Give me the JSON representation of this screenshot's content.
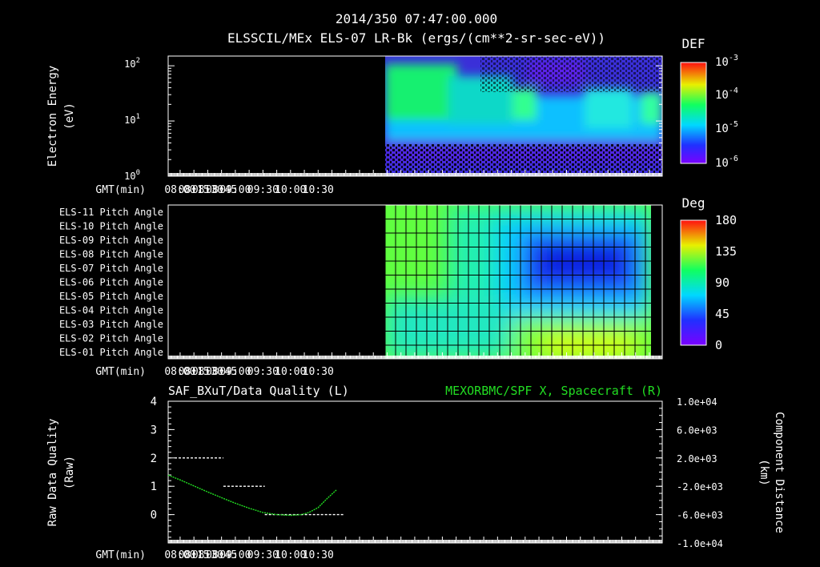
{
  "header": {
    "timestamp": "2014/350 07:47:00.000",
    "subtitle": "ELSSCIL/MEx ELS-07 LR-Bk  (ergs/(cm**2-sr-sec-eV))"
  },
  "time_axis": {
    "label": "GMT(min)",
    "range_minutes": [
      467,
      1004
    ],
    "ticks": [
      "08:00",
      "08:15",
      "08:30",
      "08:45",
      "09:00",
      "09:30",
      "10:00",
      "10:30"
    ],
    "tick_minutes": [
      480,
      495,
      510,
      525,
      540,
      570,
      600,
      630
    ]
  },
  "colors": {
    "background": "#000000",
    "axis": "#ffffff",
    "spacecraft_series": "#22dd22",
    "quality_series": "#ffffff"
  },
  "chart_data": [
    {
      "id": "energy_spectrogram",
      "type": "heatmap",
      "ylabel": "Electron Energy (eV)",
      "yscale": "log",
      "ylim": [
        1,
        150
      ],
      "ytick_labels": [
        "10^0",
        "10^1",
        "10^2"
      ],
      "xlabel": "GMT(min)",
      "data_start": "09:05",
      "colorbar": {
        "title": "DEF",
        "scale": "log",
        "range": [
          1e-06,
          0.001
        ],
        "tick_labels": [
          "10^-3",
          "10^-4",
          "10^-5",
          "10^-6"
        ]
      }
    },
    {
      "id": "pitch_angle",
      "type": "heatmap",
      "rows": [
        "ELS-11 Pitch Angle",
        "ELS-10 Pitch Angle",
        "ELS-09 Pitch Angle",
        "ELS-08 Pitch Angle",
        "ELS-07 Pitch Angle",
        "ELS-06 Pitch Angle",
        "ELS-05 Pitch Angle",
        "ELS-04 Pitch Angle",
        "ELS-03 Pitch Angle",
        "ELS-02 Pitch Angle",
        "ELS-01 Pitch Angle"
      ],
      "xlabel": "GMT(min)",
      "data_start": "09:05",
      "colorbar": {
        "title": "Deg",
        "range": [
          0,
          180
        ],
        "tick_labels": [
          "180",
          "135",
          "90",
          "45",
          "0"
        ]
      }
    },
    {
      "id": "quality_and_position",
      "type": "line",
      "left_title": "SAF_BXuT/Data Quality (L)",
      "right_title": "MEXORBMC/SPF X, Spacecraft (R)",
      "ylabel_left": "Raw Data Quality (Raw)",
      "ylabel_right": "Component Distance (km)",
      "ylim_left": [
        -1,
        4
      ],
      "yticks_left": [
        "4",
        "3",
        "2",
        "1",
        "0"
      ],
      "ylim_right": [
        -10000,
        10000
      ],
      "yticks_right": [
        "1.0e+04",
        "6.0e+03",
        "2.0e+03",
        "-2.0e+03",
        "-6.0e+03",
        "-1.0e+04"
      ],
      "series": [
        {
          "name": "SAF_BXuT/Data Quality",
          "axis": "left",
          "segments": [
            {
              "x": [
                474,
                527
              ],
              "y": 2
            },
            {
              "x": [
                527,
                572
              ],
              "y": 1
            },
            {
              "x": [
                572,
                658
              ],
              "y": 0
            }
          ]
        },
        {
          "name": "MEXORBMC/SPF X, Spacecraft",
          "axis": "right",
          "x": [
            467,
            480,
            495,
            510,
            525,
            540,
            555,
            570,
            585,
            600,
            612,
            620,
            630,
            640,
            650
          ],
          "y": [
            -430,
            -1100,
            -1950,
            -2800,
            -3600,
            -4400,
            -5100,
            -5700,
            -6000,
            -6100,
            -6000,
            -5700,
            -5000,
            -3700,
            -2500
          ]
        }
      ]
    }
  ]
}
